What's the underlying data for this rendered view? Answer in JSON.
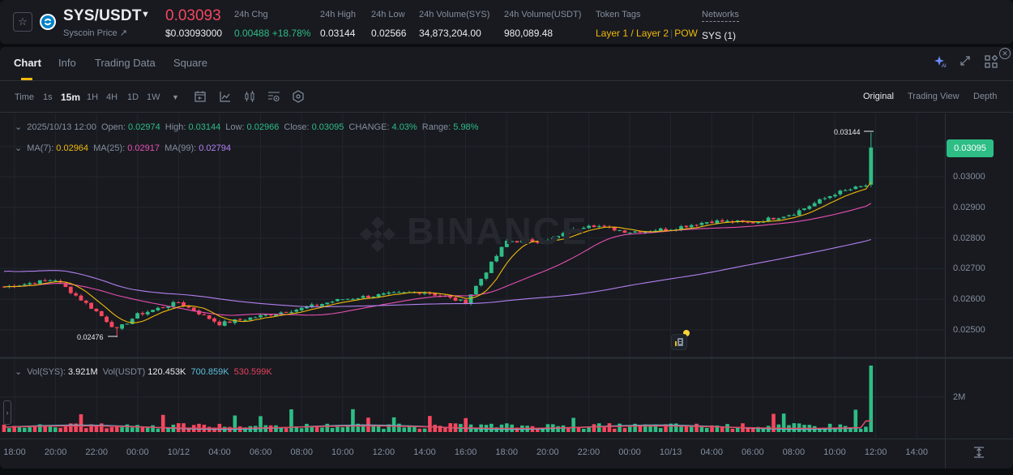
{
  "ticker": {
    "pair": "SYS/USDT",
    "coin_price_link": "Syscoin Price ↗",
    "last_price": "0.03093",
    "last_price_usd": "$0.03093000",
    "stats": [
      {
        "label": "24h Chg",
        "value": "0.00488 +18.78%"
      },
      {
        "label": "24h High",
        "value": "0.03144"
      },
      {
        "label": "24h Low",
        "value": "0.02566"
      },
      {
        "label": "24h Volume(SYS)",
        "value": "34,873,204.00"
      },
      {
        "label": "24h Volume(USDT)",
        "value": "980,089.48"
      }
    ],
    "token_tags_label": "Token Tags",
    "token_tags": [
      "Layer 1 / Layer 2",
      "POW"
    ],
    "networks_label": "Networks",
    "networks_value": "SYS (1)"
  },
  "tabs": [
    {
      "label": "Chart",
      "active": true
    },
    {
      "label": "Info"
    },
    {
      "label": "Trading Data"
    },
    {
      "label": "Square"
    }
  ],
  "toolbar": {
    "timeframes": [
      "Time",
      "1s",
      "15m",
      "1H",
      "4H",
      "1D",
      "1W"
    ],
    "active_timeframe": "15m",
    "views": [
      "Original",
      "Trading View",
      "Depth"
    ],
    "active_view": "Original",
    "icons": [
      "calendar-icon",
      "indicator-icon",
      "candle-type-icon",
      "settings-list-icon",
      "hexagon-settings-icon"
    ]
  },
  "ohlc_legend": {
    "datetime": "2025/10/13 12:00",
    "open_label": "Open:",
    "open": "0.02974",
    "high_label": "High:",
    "high": "0.03144",
    "low_label": "Low:",
    "low": "0.02966",
    "close_label": "Close:",
    "close": "0.03095",
    "change_label": "CHANGE:",
    "change": "4.03%",
    "range_label": "Range:",
    "range": "5.98%"
  },
  "ma_legend": {
    "ma7_label": "MA(7):",
    "ma7": "0.02964",
    "ma25_label": "MA(25):",
    "ma25": "0.02917",
    "ma99_label": "MA(99):",
    "ma99": "0.02794"
  },
  "vol_legend": {
    "vol_sys_label": "Vol(SYS):",
    "vol_sys": "3.921M",
    "vol_usdt_label": "Vol(USDT)",
    "vol_usdt": "120.453K",
    "ma5": "700.859K",
    "ma10": "530.599K"
  },
  "price_tag": "0.03095",
  "high_marker": "0.03144",
  "low_marker": "0.02476",
  "watermark": "BINANCE",
  "colors": {
    "up": "#2ebd85",
    "down": "#f6465d",
    "ma7": "#f0b90b",
    "ma25": "#e84fb2",
    "ma99": "#b380f0",
    "vol_ma5": "#5ec0d8",
    "vol_ma10": "#e8415b",
    "accent": "#f0b90b"
  },
  "chart_data": {
    "type": "candlestick",
    "title": "SYS/USDT 15m",
    "y_ticks": [
      "0.03000",
      "0.02900",
      "0.02800",
      "0.02700",
      "0.02600",
      "0.02500"
    ],
    "x_ticks": [
      "18:00",
      "20:00",
      "22:00",
      "00:00",
      "10/12",
      "04:00",
      "06:00",
      "08:00",
      "10:00",
      "12:00",
      "14:00",
      "16:00",
      "18:00",
      "20:00",
      "22:00",
      "00:00",
      "10/13",
      "04:00",
      "06:00",
      "08:00",
      "10:00",
      "12:00",
      "14:00"
    ],
    "vol_y_ticks": [
      "2M"
    ],
    "last": {
      "open": 0.02974,
      "high": 0.03144,
      "low": 0.02966,
      "close": 0.03095
    },
    "period_low": 0.02476,
    "period_high": 0.03144,
    "anchors": [
      {
        "t": "18:00 10/11",
        "close": 0.0264
      },
      {
        "t": "20:00",
        "close": 0.02665
      },
      {
        "t": "22:00",
        "close": 0.0256
      },
      {
        "t": "23:00",
        "close": 0.025
      },
      {
        "t": "00:00",
        "close": 0.0255
      },
      {
        "t": "02:00",
        "close": 0.0259
      },
      {
        "t": "04:00",
        "close": 0.0252
      },
      {
        "t": "06:00",
        "close": 0.02545
      },
      {
        "t": "08:00",
        "close": 0.0257
      },
      {
        "t": "10:00",
        "close": 0.026
      },
      {
        "t": "12:00",
        "close": 0.02615
      },
      {
        "t": "14:00",
        "close": 0.02625
      },
      {
        "t": "16:00",
        "close": 0.0259
      },
      {
        "t": "18:00",
        "close": 0.0279
      },
      {
        "t": "20:00",
        "close": 0.0279
      },
      {
        "t": "22:00",
        "close": 0.02845
      },
      {
        "t": "00:00",
        "close": 0.0282
      },
      {
        "t": "10/13",
        "close": 0.0283
      },
      {
        "t": "04:00",
        "close": 0.02855
      },
      {
        "t": "06:00",
        "close": 0.0285
      },
      {
        "t": "08:00",
        "close": 0.0288
      },
      {
        "t": "10:00",
        "close": 0.02945
      },
      {
        "t": "11:45",
        "close": 0.02974
      },
      {
        "t": "12:00",
        "close": 0.03095
      }
    ]
  }
}
